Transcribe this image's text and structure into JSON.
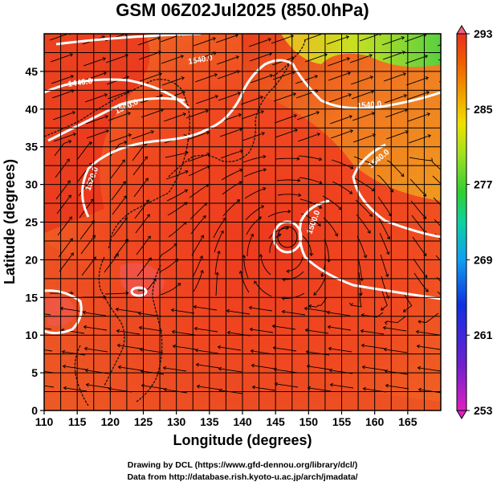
{
  "title": "GSM 06Z02Jul2025 (850.0hPa)",
  "x_axis": {
    "label": "Longitude (degrees)",
    "range": [
      110,
      170
    ],
    "ticks": [
      110,
      115,
      120,
      125,
      130,
      135,
      140,
      145,
      150,
      155,
      160,
      165
    ]
  },
  "y_axis": {
    "label": "Latitude  (degrees)",
    "range": [
      0,
      50
    ],
    "ticks": [
      0,
      5,
      10,
      15,
      20,
      25,
      30,
      35,
      40,
      45
    ]
  },
  "colorbar": {
    "min": 253,
    "max": 293,
    "ticks": [
      253,
      261,
      269,
      277,
      285,
      293
    ],
    "colors": [
      "#e020c0",
      "#7020d0",
      "#1030e0",
      "#10a0f0",
      "#10d0a0",
      "#30d030",
      "#a0e020",
      "#f0e000",
      "#f0a000",
      "#f06000",
      "#e83020",
      "#f06080"
    ]
  },
  "contours": {
    "labels": [
      "1440.0",
      "1500.0",
      "1520.0",
      "1540.0",
      "1540.0",
      "1500.0",
      "1540.0"
    ]
  },
  "credits": {
    "line1": "Drawing by DCL (https://www.gfd-dennou.org/library/dcl/)",
    "line2": "Data from http://database.rish.kyoto-u.ac.jp/arch/jmadata/"
  }
}
